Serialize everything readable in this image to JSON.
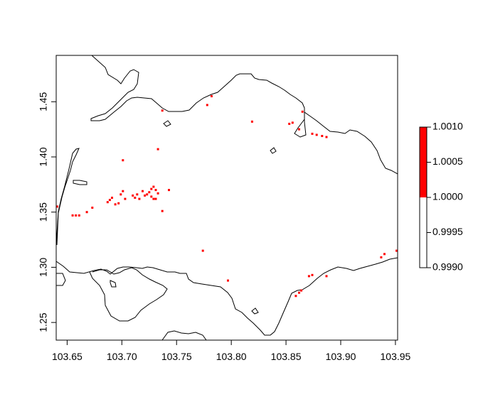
{
  "chart_data": {
    "type": "heatmap",
    "title": "",
    "xlabel": "",
    "ylabel": "",
    "xlim": [
      103.64,
      103.952
    ],
    "ylim": [
      1.234,
      1.492
    ],
    "x_ticks": [
      "103.65",
      "103.70",
      "103.75",
      "103.80",
      "103.85",
      "103.90",
      "103.95"
    ],
    "y_ticks": [
      "1.25",
      "1.30",
      "1.35",
      "1.40",
      "1.45"
    ],
    "grid": false,
    "legend": {
      "position": "right",
      "type": "colorbar",
      "ticks": [
        "1.0010",
        "1.0005",
        "1.0000",
        "0.9995",
        "0.9990"
      ],
      "segments": [
        {
          "from": 0.999,
          "to": 1.0,
          "color": "#ffffff"
        },
        {
          "from": 1.0,
          "to": 1.001,
          "color": "#ff0000"
        }
      ]
    },
    "cell_value": 1,
    "cell_color": "#ff0000",
    "cells": [
      [
        103.641,
        1.355
      ],
      [
        103.655,
        1.347
      ],
      [
        103.658,
        1.347
      ],
      [
        103.661,
        1.347
      ],
      [
        103.668,
        1.35
      ],
      [
        103.673,
        1.354
      ],
      [
        103.687,
        1.359
      ],
      [
        103.689,
        1.361
      ],
      [
        103.691,
        1.363
      ],
      [
        103.694,
        1.357
      ],
      [
        103.697,
        1.358
      ],
      [
        103.699,
        1.366
      ],
      [
        103.701,
        1.369
      ],
      [
        103.703,
        1.362
      ],
      [
        103.701,
        1.397
      ],
      [
        103.71,
        1.365
      ],
      [
        103.712,
        1.363
      ],
      [
        103.714,
        1.366
      ],
      [
        103.716,
        1.362
      ],
      [
        103.719,
        1.369
      ],
      [
        103.721,
        1.365
      ],
      [
        103.723,
        1.366
      ],
      [
        103.725,
        1.368
      ],
      [
        103.727,
        1.371
      ],
      [
        103.729,
        1.373
      ],
      [
        103.731,
        1.37
      ],
      [
        103.733,
        1.367
      ],
      [
        103.727,
        1.364
      ],
      [
        103.729,
        1.362
      ],
      [
        103.731,
        1.362
      ],
      [
        103.737,
        1.351
      ],
      [
        103.743,
        1.37
      ],
      [
        103.733,
        1.407
      ],
      [
        103.737,
        1.442
      ],
      [
        103.778,
        1.447
      ],
      [
        103.782,
        1.455
      ],
      [
        103.774,
        1.315
      ],
      [
        103.797,
        1.288
      ],
      [
        103.819,
        1.432
      ],
      [
        103.853,
        1.43
      ],
      [
        103.856,
        1.431
      ],
      [
        103.865,
        1.441
      ],
      [
        103.862,
        1.425
      ],
      [
        103.874,
        1.421
      ],
      [
        103.878,
        1.42
      ],
      [
        103.883,
        1.419
      ],
      [
        103.887,
        1.418
      ],
      [
        103.871,
        1.292
      ],
      [
        103.874,
        1.293
      ],
      [
        103.887,
        1.292
      ],
      [
        103.859,
        1.274
      ],
      [
        103.862,
        1.277
      ],
      [
        103.864,
        1.279
      ],
      [
        103.937,
        1.309
      ],
      [
        103.94,
        1.312
      ],
      [
        103.951,
        1.315
      ]
    ]
  }
}
